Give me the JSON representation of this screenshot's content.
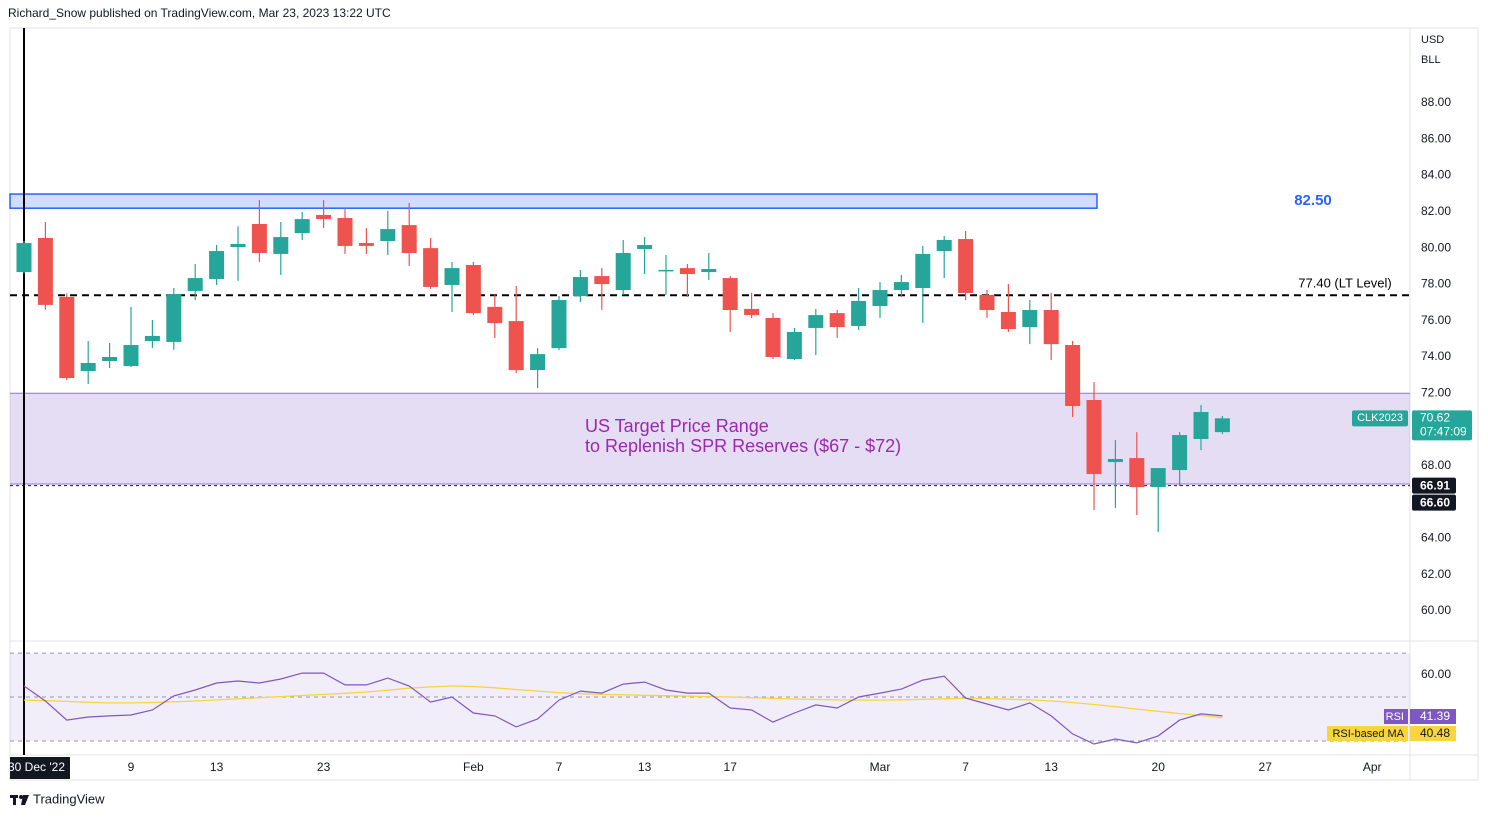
{
  "header": {
    "byline": "Richard_Snow published on TradingView.com, Mar 23, 2023 13:22 UTC"
  },
  "footer": {
    "brand": "TradingView"
  },
  "chart_data": [
    {
      "type": "candlestick",
      "currency": "USD",
      "unit": "BLL",
      "symbol": "CLK2023",
      "categories": [
        "30 Dec '22",
        null,
        null,
        null,
        null,
        "9",
        null,
        null,
        null,
        "13",
        null,
        null,
        null,
        null,
        "23",
        null,
        null,
        null,
        null,
        null,
        null,
        "Feb",
        null,
        null,
        null,
        "7",
        null,
        null,
        null,
        "13",
        null,
        null,
        null,
        "17",
        null,
        null,
        null,
        null,
        null,
        null,
        "Mar",
        null,
        null,
        null,
        "7",
        null,
        null,
        null,
        "13",
        null,
        null,
        null,
        null,
        "20",
        null,
        null,
        null,
        null,
        "27",
        null,
        null,
        null,
        null,
        "Apr"
      ],
      "open": [
        78.68,
        80.56,
        77.31,
        73.23,
        73.78,
        73.5,
        74.88,
        74.83,
        77.64,
        78.3,
        80.06,
        81.33,
        79.68,
        80.83,
        81.83,
        81.66,
        80.28,
        80.39,
        81.27,
        80.0,
        77.97,
        79.07,
        76.76,
        75.98,
        73.28,
        74.49,
        77.36,
        78.46,
        77.69,
        79.95,
        78.74,
        78.9,
        78.68,
        78.35,
        76.65,
        76.15,
        73.89,
        75.6,
        76.42,
        75.71,
        76.81,
        77.69,
        77.8,
        79.84,
        80.5,
        77.42,
        76.48,
        75.65,
        76.59,
        74.66,
        71.63,
        68.21,
        68.43,
        66.83,
        67.77,
        69.48,
        69.86,
        null,
        null,
        null,
        null,
        null,
        null,
        null
      ],
      "high": [
        80.4,
        81.44,
        77.5,
        74.88,
        74.77,
        76.76,
        76.04,
        77.8,
        79.12,
        80.17,
        81.2,
        82.65,
        81.44,
        81.99,
        82.65,
        82.2,
        81.1,
        82.05,
        82.49,
        80.56,
        79.24,
        79.24,
        77.42,
        77.91,
        74.49,
        77.36,
        78.79,
        78.9,
        80.45,
        80.61,
        79.62,
        79.12,
        79.73,
        78.46,
        77.53,
        76.42,
        75.6,
        76.65,
        76.59,
        77.8,
        78.13,
        78.52,
        80.12,
        80.67,
        80.94,
        77.69,
        78.02,
        77.14,
        77.53,
        74.88,
        72.62,
        69.42,
        69.86,
        67.88,
        69.86,
        71.35,
        70.75,
        null,
        null,
        null,
        null,
        null,
        null,
        null
      ],
      "low": [
        78.6,
        76.6,
        72.73,
        72.51,
        73.39,
        73.45,
        74.5,
        74.4,
        77.14,
        77.97,
        78.2,
        79.24,
        78.52,
        80.45,
        81.11,
        79.68,
        79.68,
        79.62,
        79.02,
        77.75,
        76.48,
        76.31,
        75.05,
        73.12,
        72.29,
        74.38,
        77.03,
        76.6,
        77.42,
        78.57,
        77.42,
        77.31,
        78.24,
        75.38,
        76.15,
        73.89,
        73.83,
        74.11,
        75.05,
        75.49,
        76.15,
        77.31,
        75.87,
        78.35,
        77.14,
        76.15,
        75.38,
        74.71,
        73.83,
        70.69,
        65.57,
        65.68,
        65.29,
        64.35,
        66.89,
        68.87,
        69.75,
        null,
        null,
        null,
        null,
        null,
        null,
        null
      ],
      "close": [
        80.28,
        76.87,
        72.84,
        73.67,
        74.0,
        74.66,
        75.16,
        77.47,
        78.35,
        79.84,
        80.23,
        79.73,
        80.61,
        81.6,
        81.6,
        80.12,
        80.12,
        81.05,
        79.73,
        77.86,
        78.9,
        76.42,
        75.87,
        73.28,
        74.16,
        77.14,
        78.41,
        78.02,
        79.73,
        80.17,
        78.8,
        78.57,
        78.85,
        76.59,
        76.31,
        74.0,
        75.38,
        76.31,
        75.65,
        77.09,
        77.69,
        78.13,
        79.68,
        80.45,
        77.53,
        76.59,
        75.54,
        76.59,
        74.71,
        71.3,
        67.55,
        68.38,
        66.83,
        67.88,
        69.7,
        70.97,
        70.62,
        null,
        null,
        null,
        null,
        null,
        null,
        null
      ],
      "up_color": "#26a69a",
      "down_color": "#ef5350",
      "ylim": [
        58.35,
        92.13
      ],
      "yticks": [
        {
          "value": 60,
          "label": "60.00"
        },
        {
          "value": 62,
          "label": "62.00"
        },
        {
          "value": 64,
          "label": "64.00"
        },
        {
          "value": 66,
          "label": "66.00"
        },
        {
          "value": 68,
          "label": "68.00"
        },
        {
          "value": 70,
          "label": "70.00"
        },
        {
          "value": 72,
          "label": "72.00"
        },
        {
          "value": 74,
          "label": "74.00"
        },
        {
          "value": 76,
          "label": "76.00"
        },
        {
          "value": 78,
          "label": "78.00"
        },
        {
          "value": 80,
          "label": "80.00"
        },
        {
          "value": 82,
          "label": "82.00"
        },
        {
          "value": 84,
          "label": "84.00"
        },
        {
          "value": 86,
          "label": "86.00"
        },
        {
          "value": 88,
          "label": "88.00"
        }
      ],
      "last_price": {
        "value": 70.62,
        "label": "70.62",
        "countdown": "07:47:09"
      },
      "price_labels": [
        {
          "value": 66.91,
          "label": "66.91",
          "dashed": true
        },
        {
          "value": 66.6,
          "label": "66.60"
        }
      ],
      "annotations": [
        {
          "kind": "box",
          "low": 82.2,
          "high": 82.98,
          "label": "82.50",
          "color": "#2962ff"
        },
        {
          "kind": "hline",
          "value": 77.4,
          "label": "77.40 (LT Level)",
          "color": "#000000"
        },
        {
          "kind": "zone",
          "low": 67,
          "high": 72,
          "lines": [
            "US Target Price Range",
            "to Replenish SPR Reserves ($67 - $72)"
          ],
          "color": "#9c27b0"
        }
      ]
    },
    {
      "type": "rsi",
      "series": [
        {
          "name": "RSI",
          "color": "#7e57c2",
          "values": [
            55,
            48.2,
            39.5,
            40.9,
            41.4,
            41.8,
            44.1,
            50.5,
            53.2,
            56.4,
            57.3,
            56.4,
            58.2,
            60.9,
            60.9,
            55.5,
            55.5,
            58.6,
            55,
            47.7,
            50,
            42.7,
            41.4,
            36.4,
            40,
            48.6,
            52.7,
            51.8,
            55.9,
            56.8,
            53.2,
            51.8,
            51.8,
            45,
            44.1,
            38.6,
            42.7,
            46.4,
            45,
            50,
            51.8,
            53.6,
            57.7,
            59.5,
            49.5,
            46.8,
            44.1,
            47.3,
            41.4,
            33.2,
            28.6,
            30.9,
            29.1,
            32.3,
            39.5,
            42.3,
            41.39
          ]
        },
        {
          "name": "RSI-based MA",
          "color": "#f7d53e",
          "values": [
            48.6,
            48.3,
            48,
            47.6,
            47.3,
            47.3,
            47.5,
            47.8,
            48.2,
            48.7,
            49.2,
            49.7,
            50.2,
            50.7,
            51.2,
            51.7,
            52.3,
            53.1,
            54,
            54.6,
            55,
            54.8,
            54.2,
            53.4,
            52.7,
            52,
            51.5,
            51.2,
            51,
            50.8,
            50.6,
            50.4,
            50.2,
            50,
            49.7,
            49.4,
            49.1,
            48.9,
            48.7,
            48.6,
            48.6,
            48.7,
            48.9,
            49.2,
            49.5,
            49.3,
            49,
            48.7,
            48.2,
            47.5,
            46.6,
            45.6,
            44.5,
            43.5,
            42.5,
            41.6,
            40.48
          ]
        }
      ],
      "ylim": [
        23.6,
        75.5
      ],
      "yticks": [
        {
          "value": 60,
          "label": "60.00"
        }
      ],
      "levels": [
        70,
        50,
        30
      ]
    }
  ]
}
